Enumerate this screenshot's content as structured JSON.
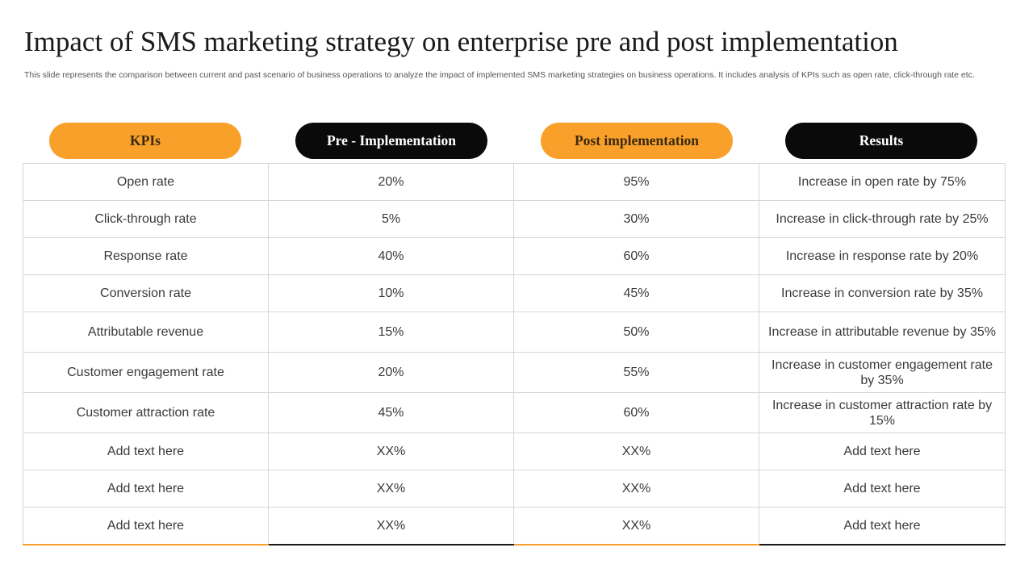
{
  "slide": {
    "title": "Impact of SMS marketing strategy on enterprise pre and post implementation",
    "subtitle": "This slide represents the comparison between current and past scenario of business operations to analyze the impact of implemented SMS marketing strategies on business operations. It includes analysis of KPIs such as open rate, click-through rate etc."
  },
  "table": {
    "headers": [
      "KPIs",
      "Pre - Implementation",
      "Post implementation",
      "Results"
    ],
    "rows": [
      [
        "Open rate",
        "20%",
        "95%",
        "Increase  in open rate by 75%"
      ],
      [
        "Click-through rate",
        "5%",
        "30%",
        "Increase  in click-through  rate by 25%"
      ],
      [
        "Response rate",
        "40%",
        "60%",
        "Increase  in response rate by 20%"
      ],
      [
        "Conversion rate",
        "10%",
        "45%",
        "Increase  in conversion  rate by 35%"
      ],
      [
        "Attributable revenue",
        "15%",
        "50%",
        "Increase  in attributable  revenue by 35%"
      ],
      [
        "Customer engagement rate",
        "20%",
        "55%",
        "Increase  in customer  engagement rate by 35%"
      ],
      [
        "Customer attraction rate",
        "45%",
        "60%",
        "Increase  in customer  attraction rate by 15%"
      ],
      [
        "Add text here",
        "XX%",
        "XX%",
        "Add text here"
      ],
      [
        "Add text here",
        "XX%",
        "XX%",
        "Add text here"
      ],
      [
        "Add text here",
        "XX%",
        "XX%",
        "Add text here"
      ]
    ]
  },
  "colors": {
    "accent_orange": "#f9a02b",
    "pill_black": "#0a0a0a",
    "grid_line": "#d6d6d6"
  }
}
